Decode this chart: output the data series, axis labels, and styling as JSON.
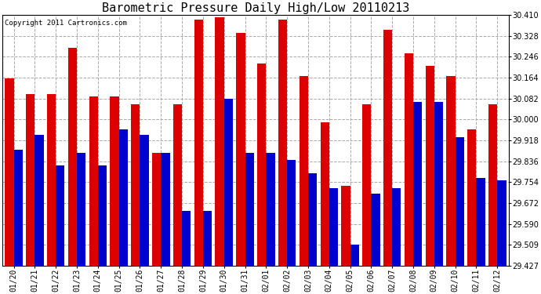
{
  "title": "Barometric Pressure Daily High/Low 20110213",
  "copyright": "Copyright 2011 Cartronics.com",
  "dates": [
    "01/20",
    "01/21",
    "01/22",
    "01/23",
    "01/24",
    "01/25",
    "01/26",
    "01/27",
    "01/28",
    "01/29",
    "01/30",
    "01/31",
    "02/01",
    "02/02",
    "02/03",
    "02/04",
    "02/05",
    "02/06",
    "02/07",
    "02/08",
    "02/09",
    "02/10",
    "02/11",
    "02/12"
  ],
  "highs": [
    30.16,
    30.1,
    30.1,
    30.28,
    30.09,
    30.09,
    30.06,
    29.87,
    30.06,
    30.39,
    30.4,
    30.34,
    30.22,
    30.39,
    30.17,
    29.99,
    29.74,
    30.06,
    30.35,
    30.26,
    30.21,
    30.17,
    29.96,
    30.06
  ],
  "lows": [
    29.88,
    29.94,
    29.82,
    29.87,
    29.82,
    29.96,
    29.94,
    29.87,
    29.64,
    29.64,
    30.08,
    29.87,
    29.87,
    29.84,
    29.79,
    29.73,
    29.51,
    29.71,
    29.73,
    30.07,
    30.07,
    29.93,
    29.77,
    29.76
  ],
  "high_color": "#DD0000",
  "low_color": "#0000CC",
  "background_color": "#FFFFFF",
  "grid_color": "#AAAAAA",
  "ylim_min": 29.427,
  "ylim_max": 30.41,
  "yticks": [
    29.427,
    29.509,
    29.59,
    29.672,
    29.754,
    29.836,
    29.918,
    30.0,
    30.082,
    30.164,
    30.246,
    30.328,
    30.41
  ],
  "title_fontsize": 11,
  "copyright_fontsize": 6.5,
  "tick_fontsize": 7,
  "bar_width": 0.42
}
